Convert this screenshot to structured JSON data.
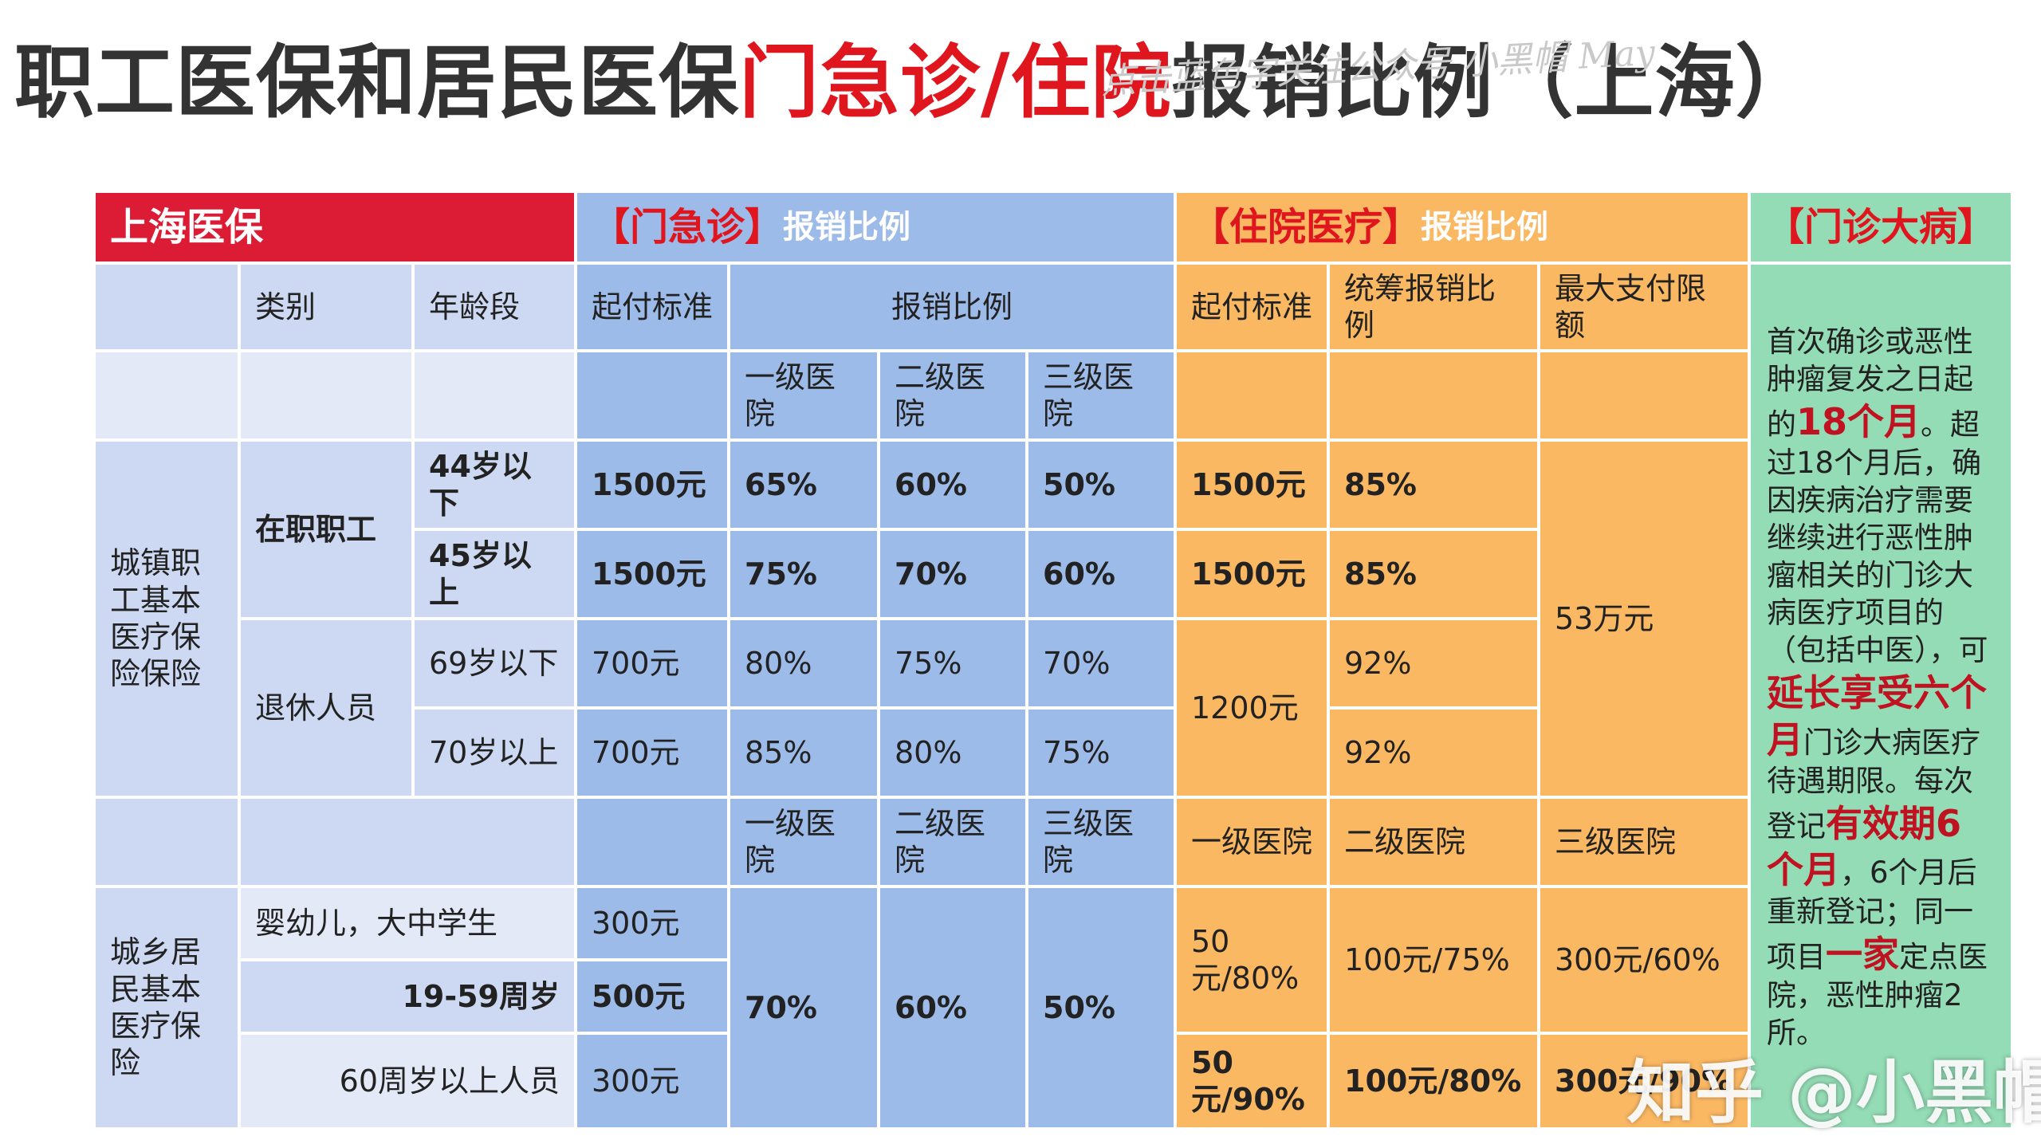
{
  "title": {
    "part1": "职工医保和居民医保",
    "part2": "门急诊/住院",
    "part3": "报销比例（上海）"
  },
  "watermarks": {
    "top_line1": "点击蓝色字关注公众号 小黑帽 May",
    "bottom": "知乎 @小黑帽"
  },
  "headers": {
    "shanghai": "上海医保",
    "outpatient_bracket": "【门急诊】",
    "outpatient_suffix": "报销比例",
    "inpatient_bracket": "【住院医疗】",
    "inpatient_suffix": "报销比例",
    "major_illness": "【门诊大病】"
  },
  "columns": {
    "category": "类别",
    "age_group": "年龄段",
    "deductible": "起付标准",
    "reimbursement": "报销比例",
    "hospital_level_1": "一级医院",
    "hospital_level_2": "二级医院",
    "hospital_level_3": "三级医院",
    "inpatient_deductible": "起付标准",
    "pooled_reimbursement": "统筹报销比例",
    "max_payment": "最大支付限额"
  },
  "employee": {
    "label": "城镇职工基本医疗保险保险",
    "in_service": "在职职工",
    "retired": "退休人员",
    "rows": [
      {
        "age": "44岁以下",
        "deductible": "1500元",
        "l1": "65%",
        "l2": "60%",
        "l3": "50%",
        "in_deductible": "1500元",
        "pooled": "85%"
      },
      {
        "age": "45岁以上",
        "deductible": "1500元",
        "l1": "75%",
        "l2": "70%",
        "l3": "60%",
        "in_deductible": "1500元",
        "pooled": "85%"
      },
      {
        "age": "69岁以下",
        "deductible": "700元",
        "l1": "80%",
        "l2": "75%",
        "l3": "70%",
        "pooled": "92%"
      },
      {
        "age": "70岁以上",
        "deductible": "700元",
        "l1": "85%",
        "l2": "80%",
        "l3": "75%",
        "pooled": "92%"
      }
    ],
    "retired_in_deductible": "1200元",
    "max_limit": "53万元"
  },
  "resident": {
    "label": "城乡居民基本医疗保险",
    "rows": [
      {
        "group": "婴幼儿，大中学生",
        "deductible": "300元"
      },
      {
        "group": "19-59周岁",
        "deductible": "500元"
      },
      {
        "group": "60周岁以上人员",
        "deductible": "300元"
      }
    ],
    "outpatient_l1": "70%",
    "outpatient_l2": "60%",
    "outpatient_l3": "50%",
    "in_l1": "50元/80%",
    "in_l2": "100元/75%",
    "in_l3": "300元/60%",
    "senior_l1": "50元/90%",
    "senior_l2": "100元/80%",
    "senior_l3": "300元/90%"
  },
  "major_illness_note": {
    "t1": "首次确诊或恶性肿瘤复发之日起的",
    "h1": "18个月",
    "t2": "。超过18个月后，确因疾病治疗需要继续进行恶性肿瘤相关的门诊大病医疗项目的（包括中医），可",
    "h2": "延长享受六个月",
    "t3": "门诊大病医疗待遇期限。每次登记",
    "h3": "有效期6个月",
    "t4": "，6个月后重新登记；同一项目",
    "h4": "一家",
    "t5": "定点医院，恶性肿瘤2所。"
  }
}
